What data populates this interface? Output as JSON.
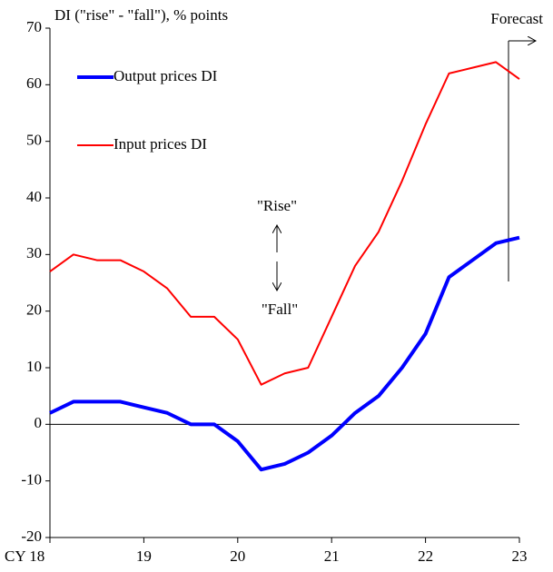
{
  "chart_data": {
    "type": "line",
    "y_label": "DI (\"rise\" - \"fall\"),  % points",
    "x": [
      18,
      18.25,
      18.5,
      18.75,
      19,
      19.25,
      19.5,
      19.75,
      20,
      20.25,
      20.5,
      20.75,
      21,
      21.25,
      21.5,
      21.75,
      22,
      22.25,
      22.5,
      22.75,
      23
    ],
    "series": [
      {
        "name": "Output prices DI",
        "color": "#0000ff",
        "values": [
          2,
          4,
          4,
          4,
          3,
          2,
          0,
          0,
          -3,
          -8,
          -7,
          -5,
          -2,
          2,
          5,
          10,
          16,
          26,
          29,
          32,
          33
        ]
      },
      {
        "name": "Input prices DI",
        "color": "#ff0000",
        "values": [
          27,
          30,
          29,
          29,
          27,
          24,
          19,
          19,
          15,
          7,
          9,
          10,
          19,
          28,
          34,
          43,
          53,
          62,
          63,
          64,
          61
        ]
      }
    ],
    "xlim": [
      18,
      23
    ],
    "xticks": [
      {
        "value": 18,
        "label": "CY 18"
      },
      19,
      20,
      21,
      22,
      23
    ],
    "ylim": [
      -20,
      70
    ],
    "yticks": [
      -20,
      -10,
      0,
      10,
      20,
      30,
      40,
      50,
      60,
      70
    ],
    "annotations": [
      "Forecast",
      "\"Rise\"",
      "\"Fall\""
    ]
  }
}
